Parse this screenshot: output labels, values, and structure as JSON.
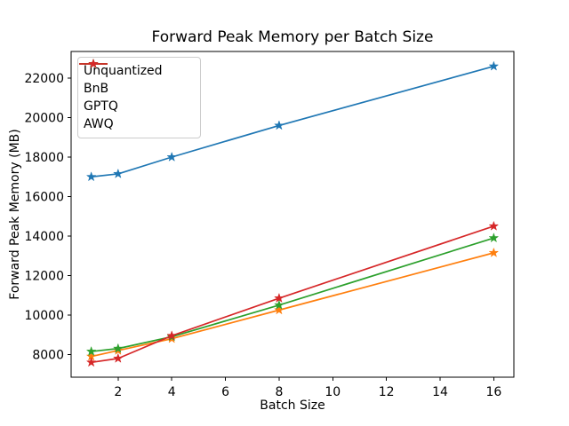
{
  "figure": {
    "background_color": "#ffffff",
    "spine_color": "#000000",
    "legend_border_color": "#cccccc"
  },
  "chart_data": {
    "type": "line",
    "title": "Forward Peak Memory per Batch Size",
    "xlabel": "Batch Size",
    "ylabel": "Forward Peak Memory (MB)",
    "x": [
      1,
      2,
      4,
      8,
      16
    ],
    "x_ticks": [
      2,
      4,
      6,
      8,
      10,
      12,
      14,
      16
    ],
    "y_ticks": [
      8000,
      10000,
      12000,
      14000,
      16000,
      18000,
      20000,
      22000
    ],
    "xlim": [
      0.25,
      16.75
    ],
    "ylim": [
      6850,
      23350
    ],
    "grid": false,
    "marker": "star",
    "legend_position": "upper left",
    "legend_entries": [
      "Unquantized",
      "BnB",
      "GPTQ",
      "AWQ"
    ],
    "series": [
      {
        "name": "Unquantized",
        "color": "#1f77b4",
        "values": [
          17000,
          17150,
          18000,
          19600,
          22600
        ]
      },
      {
        "name": "BnB",
        "color": "#ff7f0e",
        "values": [
          7900,
          8200,
          8800,
          10250,
          13150
        ]
      },
      {
        "name": "GPTQ",
        "color": "#2ca02c",
        "values": [
          8150,
          8300,
          8900,
          10500,
          13900
        ]
      },
      {
        "name": "AWQ",
        "color": "#d62728",
        "values": [
          7600,
          7800,
          8950,
          10850,
          14500
        ]
      }
    ]
  }
}
